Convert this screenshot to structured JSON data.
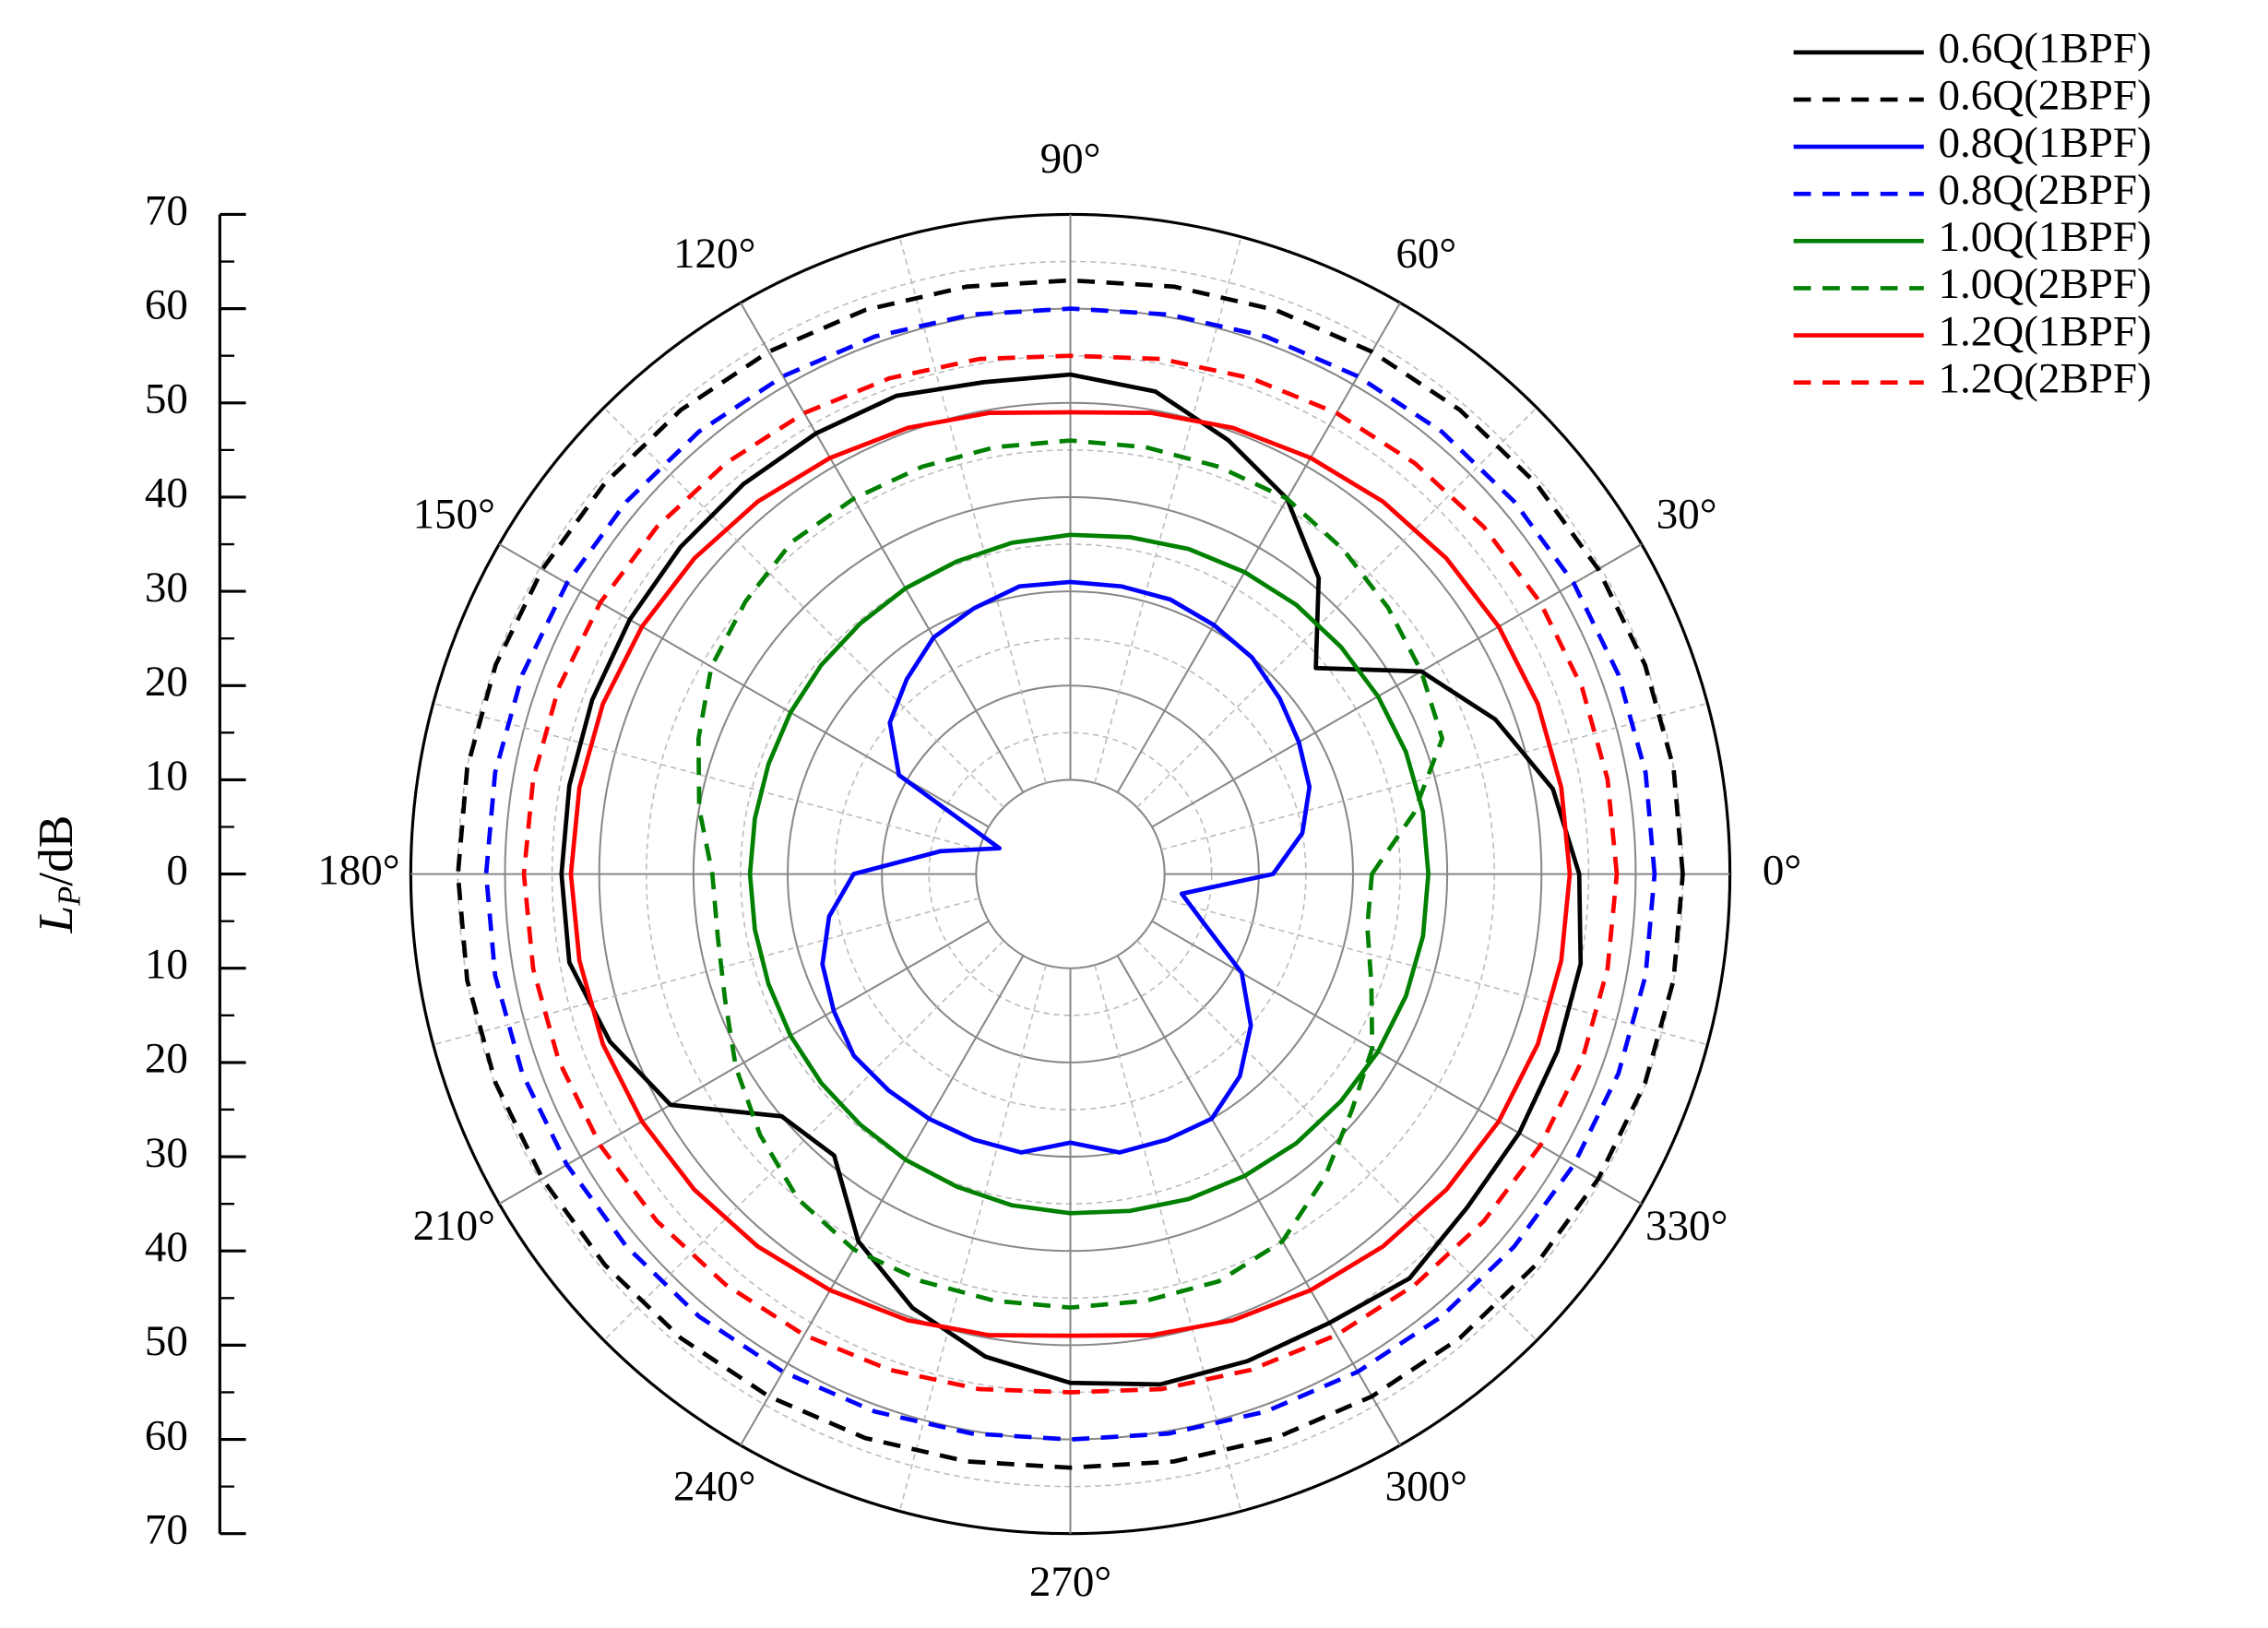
{
  "chart_data": {
    "type": "polar",
    "ylabel": {
      "main": "L",
      "sub": "P",
      "rest": "/dB"
    },
    "rlim": [
      0,
      70
    ],
    "rticks": [
      0,
      10,
      20,
      30,
      40,
      50,
      60,
      70
    ],
    "rminorticks": [
      5,
      15,
      25,
      35,
      45,
      55,
      65
    ],
    "thetaticks": [
      {
        "value": 0,
        "label": "0°"
      },
      {
        "value": 30,
        "label": "30°"
      },
      {
        "value": 60,
        "label": "60°"
      },
      {
        "value": 90,
        "label": "90°"
      },
      {
        "value": 120,
        "label": "120°"
      },
      {
        "value": 150,
        "label": "150°"
      },
      {
        "value": 180,
        "label": "180°"
      },
      {
        "value": 210,
        "label": "210°"
      },
      {
        "value": 240,
        "label": "240°"
      },
      {
        "value": 270,
        "label": "270°"
      },
      {
        "value": 300,
        "label": "300°"
      },
      {
        "value": 330,
        "label": "330°"
      }
    ],
    "thetaminorticks": [
      15,
      45,
      75,
      105,
      135,
      165,
      195,
      225,
      255,
      285,
      315,
      345
    ],
    "theta": [
      0,
      10,
      20,
      30,
      40,
      50,
      60,
      70,
      80,
      90,
      100,
      110,
      120,
      130,
      140,
      150,
      160,
      170,
      180,
      190,
      200,
      210,
      220,
      230,
      240,
      250,
      260,
      270,
      280,
      290,
      300,
      310,
      320,
      330,
      340,
      350
    ],
    "legend": "top-right",
    "series": [
      {
        "name": "0.6Q(1BPF)",
        "color": "#000000",
        "dash": false,
        "values": [
          54,
          52,
          48,
          43,
          34,
          41,
          46,
          49,
          52,
          53,
          53,
          54,
          54,
          54,
          54,
          54,
          54,
          54,
          54,
          54,
          52,
          49,
          40,
          39,
          45,
          49,
          52,
          54,
          55,
          55,
          55,
          56,
          55,
          55,
          55,
          55
        ]
      },
      {
        "name": "0.6Q(2BPF)",
        "color": "#000000",
        "dash": true,
        "values": [
          65,
          65,
          64.9,
          64.7,
          64.5,
          64.3,
          64,
          63.7,
          63.3,
          63,
          63.3,
          63.7,
          64,
          64.3,
          64.5,
          64.7,
          64.9,
          65,
          65,
          65,
          64.9,
          64.7,
          64.5,
          64.3,
          64,
          63.7,
          63.3,
          63,
          63.3,
          63.7,
          64,
          64.3,
          64.5,
          64.7,
          64.9,
          65
        ]
      },
      {
        "name": "0.8Q(1BPF)",
        "color": "#0000ff",
        "dash": false,
        "values": [
          21.5,
          25,
          27,
          28,
          29,
          30,
          30.5,
          31,
          31,
          31,
          31,
          30,
          29,
          27,
          25,
          21,
          8,
          14,
          23,
          26,
          28,
          29,
          30,
          30,
          30,
          30,
          30,
          28.5,
          30,
          30,
          30,
          28,
          25,
          21,
          15,
          12
        ]
      },
      {
        "name": "0.8Q(2BPF)",
        "color": "#0000ff",
        "dash": true,
        "values": [
          62,
          62,
          61.9,
          61.7,
          61.5,
          61.3,
          61,
          60.7,
          60.3,
          60,
          60.3,
          60.7,
          61,
          61.3,
          61.5,
          61.7,
          61.9,
          62,
          62,
          62,
          61.9,
          61.7,
          61.5,
          61.3,
          61,
          60.7,
          60.3,
          60,
          60.3,
          60.7,
          61,
          61.3,
          61.5,
          61.7,
          61.9,
          62
        ]
      },
      {
        "name": "1.0Q(1BPF)",
        "color": "#008000",
        "dash": false,
        "values": [
          38,
          38,
          37.9,
          37.7,
          37.5,
          37.3,
          37,
          36.7,
          36.3,
          36,
          35.7,
          35.3,
          35,
          34.7,
          34.5,
          34.3,
          34.1,
          34,
          34,
          34,
          34.1,
          34.3,
          34.5,
          34.7,
          35,
          35.3,
          35.7,
          36,
          36.3,
          36.7,
          37,
          37.3,
          37.5,
          37.7,
          37.9,
          38
        ]
      },
      {
        "name": "1.0Q(2BPF)",
        "color": "#008000",
        "dash": true,
        "values": [
          32,
          37,
          42,
          43,
          44,
          45,
          46,
          46,
          46,
          46,
          46,
          46,
          46,
          46,
          45,
          44,
          42,
          40,
          38,
          38,
          39,
          41,
          43,
          45,
          46,
          46,
          46,
          46,
          46,
          46,
          45,
          42,
          39,
          37,
          34,
          32
        ]
      },
      {
        "name": "1.2Q(1BPF)",
        "color": "#ff0000",
        "dash": false,
        "values": [
          53,
          52.9,
          52.8,
          52.5,
          52.1,
          51.6,
          51,
          50.4,
          49.7,
          49,
          49.7,
          50.4,
          51,
          51.6,
          52.1,
          52.5,
          52.8,
          52.9,
          53,
          52.9,
          52.8,
          52.5,
          52.1,
          51.6,
          51,
          50.4,
          49.7,
          49,
          49.7,
          50.4,
          51,
          51.6,
          52.1,
          52.5,
          52.8,
          52.9
        ]
      },
      {
        "name": "1.2Q(2BPF)",
        "color": "#ff0000",
        "dash": true,
        "values": [
          58,
          57.9,
          57.8,
          57.6,
          57.3,
          56.9,
          56.5,
          56,
          55.5,
          55,
          55.5,
          56,
          56.5,
          56.9,
          57.3,
          57.6,
          57.8,
          57.9,
          58,
          57.9,
          57.8,
          57.6,
          57.3,
          56.9,
          56.5,
          56,
          55.5,
          55,
          55.5,
          56,
          56.5,
          56.9,
          57.3,
          57.6,
          57.8,
          57.9
        ]
      }
    ]
  }
}
